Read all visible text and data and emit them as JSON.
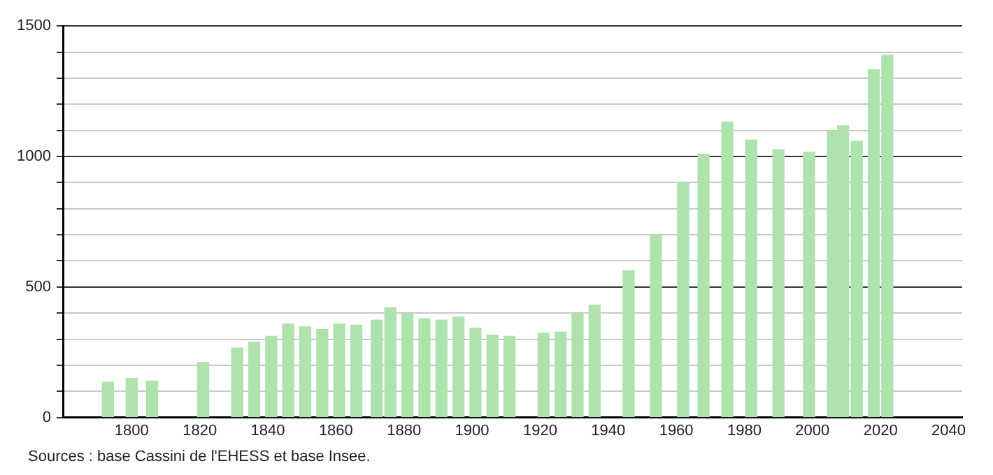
{
  "chart_data": {
    "type": "bar",
    "x": [
      1793,
      1800,
      1806,
      1821,
      1831,
      1836,
      1841,
      1846,
      1851,
      1856,
      1861,
      1866,
      1872,
      1876,
      1881,
      1886,
      1891,
      1896,
      1901,
      1906,
      1911,
      1921,
      1926,
      1931,
      1936,
      1946,
      1954,
      1962,
      1968,
      1975,
      1982,
      1990,
      1999,
      2006,
      2009,
      2013,
      2018,
      2022
    ],
    "values": [
      135,
      150,
      140,
      211,
      266,
      289,
      311,
      358,
      347,
      337,
      358,
      354,
      373,
      420,
      397,
      378,
      373,
      384,
      342,
      316,
      311,
      323,
      327,
      397,
      430,
      562,
      700,
      900,
      1009,
      1132,
      1063,
      1026,
      1016,
      1097,
      1118,
      1058,
      1332,
      1388
    ],
    "color": "#aee3ae",
    "xlim": [
      1780,
      2044
    ],
    "xticks": [
      1800,
      1820,
      1840,
      1860,
      1880,
      1900,
      1920,
      1940,
      1960,
      1980,
      2000,
      2020,
      2040
    ],
    "ylim": [
      0,
      1500
    ],
    "yticks": [
      0,
      {
        "value": 100,
        "label": null
      },
      {
        "value": 200,
        "label": null
      },
      {
        "value": 300,
        "label": null
      },
      {
        "value": 400,
        "label": null
      },
      500,
      {
        "value": 600,
        "label": null
      },
      {
        "value": 700,
        "label": null
      },
      {
        "value": 800,
        "label": null
      },
      {
        "value": 900,
        "label": null
      },
      1000,
      {
        "value": 1100,
        "label": null
      },
      {
        "value": 1200,
        "label": null
      },
      {
        "value": 1300,
        "label": null
      },
      {
        "value": 1400,
        "label": null
      },
      1500
    ],
    "grid": "y",
    "legend": false,
    "annotations": [
      "Sources : base Cassini de l'EHESS et base Insee."
    ]
  }
}
